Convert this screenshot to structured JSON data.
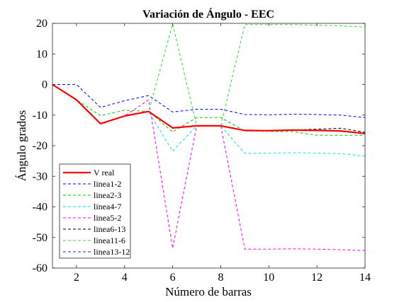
{
  "chart_data": {
    "type": "line",
    "title": "Variación de Ángulo - EEC",
    "xlabel": "Número de barras",
    "ylabel": "Ángulo grados",
    "xlim": [
      1,
      14
    ],
    "ylim": [
      -60,
      20
    ],
    "xticks": [
      2,
      4,
      6,
      8,
      10,
      12,
      14
    ],
    "yticks": [
      20,
      10,
      0,
      -10,
      -20,
      -30,
      -40,
      -50,
      -60
    ],
    "grid": false,
    "legend_position": "bottom-left",
    "x": [
      1,
      2,
      3,
      4,
      5,
      6,
      7,
      8,
      9,
      10,
      11,
      12,
      13,
      14
    ],
    "series": [
      {
        "name": "V real",
        "color": "#ff0000",
        "dash": "solid",
        "width": 2.2,
        "values": [
          0,
          -5,
          -12.8,
          -10.3,
          -8.8,
          -14.2,
          -13.5,
          -13.5,
          -15.0,
          -15.1,
          -14.9,
          -15.0,
          -15.2,
          -16.0
        ]
      },
      {
        "name": "linea1-2",
        "color": "#0000ff",
        "dash": "dashed",
        "width": 1,
        "values": [
          0,
          0,
          -7.5,
          -5.3,
          -3.6,
          -9.0,
          -8.1,
          -8.1,
          -9.8,
          -9.9,
          -9.7,
          -9.8,
          -10.0,
          -10.8
        ]
      },
      {
        "name": "linea2-3",
        "color": "#00cc00",
        "dash": "dashed",
        "width": 1,
        "values": [
          0,
          -5,
          -10.2,
          -8.4,
          -8.8,
          -15.5,
          -10.8,
          -10.8,
          -15.2,
          -15.3,
          -15.4,
          -16.6,
          -16.6,
          -16.6
        ]
      },
      {
        "name": "linea4-7",
        "color": "#00e6e6",
        "dash": "dashed",
        "width": 1,
        "values": [
          0,
          -5,
          -12.8,
          -10.3,
          -8.8,
          -21.8,
          -13.5,
          -13.5,
          -22.5,
          -22.4,
          -22.3,
          -22.4,
          -22.6,
          -23.4
        ]
      },
      {
        "name": "linea5-2",
        "color": "#ff00ff",
        "dash": "dashed",
        "width": 1,
        "values": [
          0,
          -5,
          -12.8,
          -10.3,
          -5.0,
          -53.5,
          -13.5,
          -13.5,
          -53.8,
          -53.8,
          -53.7,
          -53.8,
          -54.0,
          -54.3
        ]
      },
      {
        "name": "linea6-13",
        "color": "#000000",
        "dash": "dashed",
        "width": 1,
        "values": [
          0,
          -5,
          -12.8,
          -10.3,
          -8.8,
          -14.2,
          -13.5,
          -13.5,
          -15.0,
          -15.1,
          -14.9,
          -14.6,
          -14.3,
          -15.6
        ]
      },
      {
        "name": "linea11-6",
        "color": "#33dd33",
        "dash": "dashed",
        "width": 1,
        "values": [
          0,
          -5,
          -12.8,
          -10.3,
          -8.8,
          19.8,
          -13.5,
          -13.5,
          19.6,
          19.6,
          19.6,
          19.4,
          19.2,
          18.8
        ]
      },
      {
        "name": "linea13-12",
        "color": "#2222cc",
        "dash": "dashed",
        "width": 1,
        "values": [
          0,
          -5,
          -12.8,
          -10.3,
          -8.8,
          -14.2,
          -13.5,
          -13.5,
          -15.0,
          -15.1,
          -14.9,
          -15.0,
          -15.3,
          -16.2
        ]
      }
    ]
  }
}
